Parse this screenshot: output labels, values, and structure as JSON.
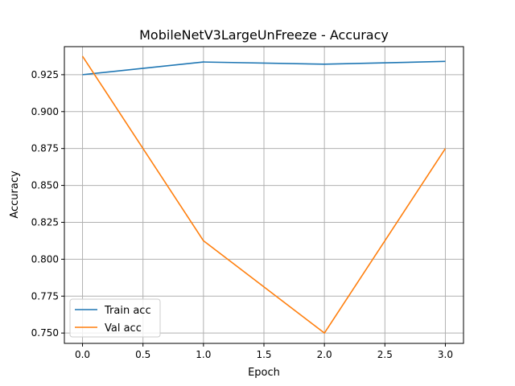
{
  "chart_data": {
    "type": "line",
    "title": "MobileNetV3LargeUnFreeze - Accuracy",
    "xlabel": "Epoch",
    "ylabel": "Accuracy",
    "x": [
      0,
      1,
      2,
      3
    ],
    "xlim": [
      -0.15,
      3.15
    ],
    "ylim": [
      0.743,
      0.944
    ],
    "xticks": [
      "0.0",
      "0.5",
      "1.0",
      "1.5",
      "2.0",
      "2.5",
      "3.0"
    ],
    "xtick_values": [
      0.0,
      0.5,
      1.0,
      1.5,
      2.0,
      2.5,
      3.0
    ],
    "yticks": [
      "0.750",
      "0.775",
      "0.800",
      "0.825",
      "0.850",
      "0.875",
      "0.900",
      "0.925"
    ],
    "ytick_values": [
      0.75,
      0.775,
      0.8,
      0.825,
      0.85,
      0.875,
      0.9,
      0.925
    ],
    "grid": true,
    "legend_position": "lower-left",
    "series": [
      {
        "name": "Train acc",
        "color": "#1f77b4",
        "values": [
          0.925,
          0.9336,
          0.9321,
          0.934
        ]
      },
      {
        "name": "Val acc",
        "color": "#ff7f0e",
        "values": [
          0.9375,
          0.8125,
          0.75,
          0.875
        ]
      }
    ]
  }
}
